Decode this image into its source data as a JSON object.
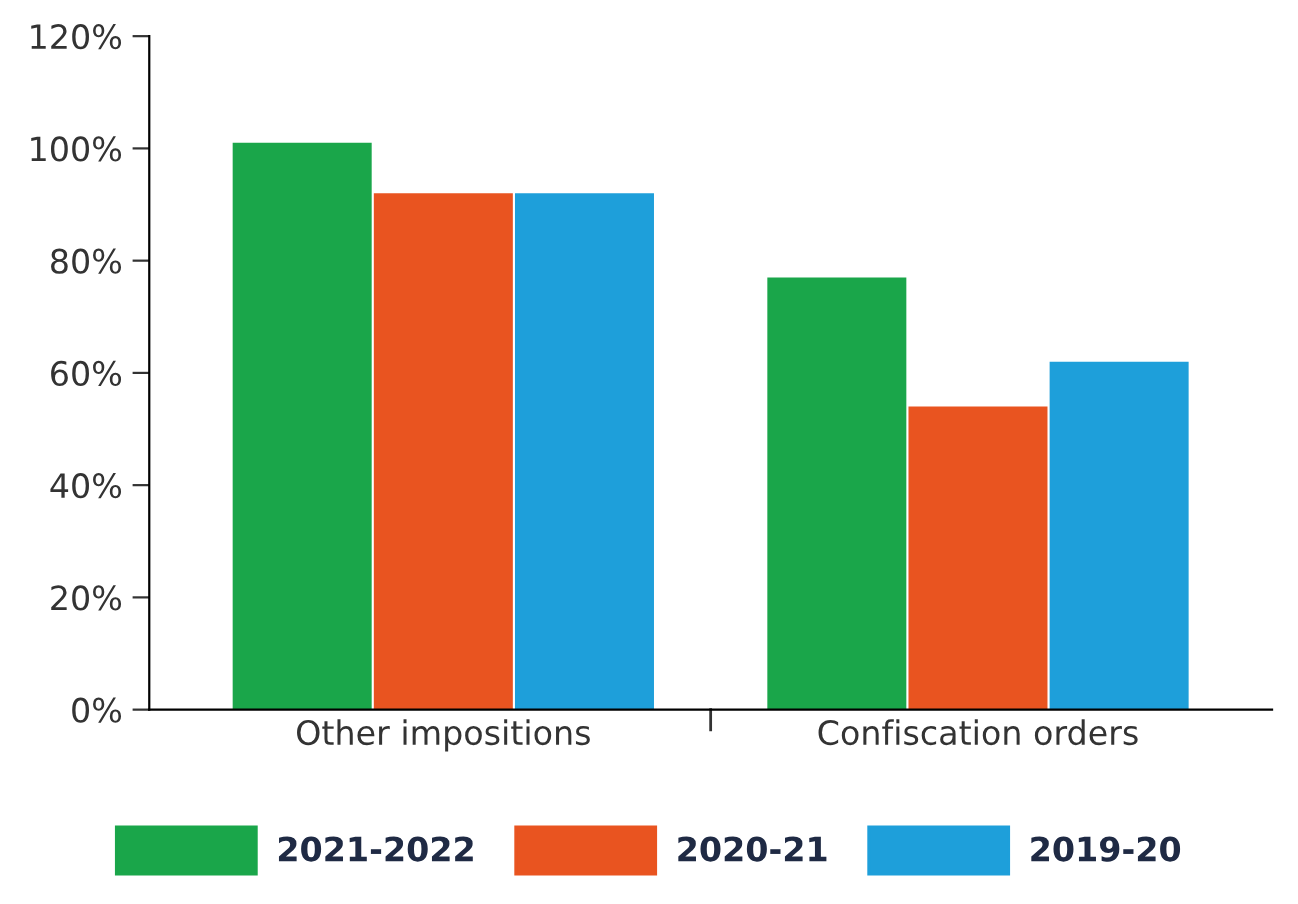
{
  "chart_data": {
    "type": "bar",
    "categories": [
      "Other impositions",
      "Confiscation orders"
    ],
    "series": [
      {
        "name": "2021-2022",
        "color": "#1aa64a",
        "values": [
          101,
          77
        ]
      },
      {
        "name": "2020-21",
        "color": "#e95420",
        "values": [
          92,
          54
        ]
      },
      {
        "name": "2019-20",
        "color": "#1e9fda",
        "values": [
          92,
          62
        ]
      }
    ],
    "ylim": [
      0,
      120
    ],
    "yticks": [
      {
        "value": 0,
        "label": "0%"
      },
      {
        "value": 20,
        "label": "20%"
      },
      {
        "value": 40,
        "label": "40%"
      },
      {
        "value": 60,
        "label": "60%"
      },
      {
        "value": 80,
        "label": "80%"
      },
      {
        "value": 100,
        "label": "100%"
      },
      {
        "value": 120,
        "label": "120%"
      }
    ],
    "grid": false,
    "legend": "bottom"
  }
}
